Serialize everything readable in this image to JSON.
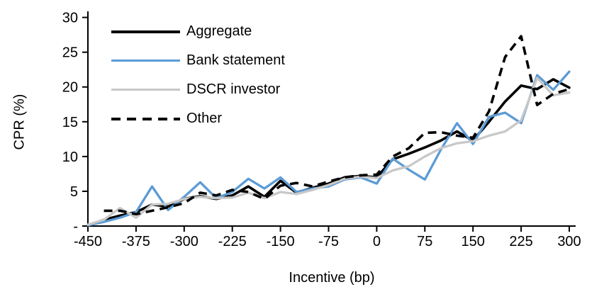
{
  "figure": {
    "y_axis_title": "CPR (%)",
    "x_axis_title": "Incentive (bp)"
  },
  "legend": {
    "items": [
      {
        "label": "Aggregate"
      },
      {
        "label": "Bank statement"
      },
      {
        "label": "DSCR investor"
      },
      {
        "label": "Other"
      }
    ]
  },
  "chart_data": {
    "type": "line",
    "title": "",
    "xlabel": "Incentive (bp)",
    "ylabel": "CPR (%)",
    "xlim": [
      -450,
      300
    ],
    "ylim": [
      0,
      30
    ],
    "grid": false,
    "legend_position": "top-left",
    "x_ticks": [
      -450,
      -375,
      -300,
      -225,
      -150,
      -75,
      0,
      75,
      150,
      225,
      300
    ],
    "y_ticks": [
      0,
      5,
      10,
      15,
      20,
      25,
      30
    ],
    "y_tick_labels": [
      "-",
      "5",
      "10",
      "15",
      "20",
      "25",
      "30"
    ],
    "x": [
      -450,
      -425,
      -400,
      -375,
      -350,
      -325,
      -300,
      -275,
      -250,
      -225,
      -200,
      -175,
      -150,
      -125,
      -100,
      -75,
      -50,
      -25,
      0,
      25,
      50,
      75,
      100,
      125,
      150,
      175,
      200,
      225,
      250,
      275,
      300
    ],
    "series": [
      {
        "name": "Aggregate",
        "color": "#000000",
        "dash": false,
        "values": [
          0.1,
          0.9,
          1.5,
          2.0,
          3.1,
          2.8,
          3.9,
          4.3,
          3.9,
          4.4,
          5.7,
          4.2,
          6.5,
          4.8,
          5.5,
          6.1,
          7.0,
          7.2,
          7.0,
          9.6,
          10.4,
          11.3,
          12.3,
          13.6,
          12.3,
          15.0,
          17.9,
          20.2,
          19.7,
          21.1,
          19.9
        ]
      },
      {
        "name": "Bank statement",
        "color": "#5B9BD5",
        "dash": false,
        "values": [
          0.1,
          0.6,
          1.2,
          2.0,
          5.7,
          2.3,
          4.2,
          6.3,
          4.0,
          4.9,
          6.8,
          5.4,
          7.0,
          4.9,
          5.4,
          5.7,
          6.7,
          7.0,
          6.1,
          9.7,
          8.1,
          6.7,
          11.0,
          14.8,
          11.8,
          15.7,
          16.3,
          14.8,
          21.7,
          19.6,
          22.2
        ]
      },
      {
        "name": "DSCR investor",
        "color": "#C8C8C8",
        "dash": false,
        "values": [
          0.2,
          0.9,
          2.6,
          1.2,
          3.1,
          3.2,
          3.9,
          4.2,
          4.0,
          4.1,
          4.8,
          4.0,
          4.9,
          4.6,
          5.2,
          5.9,
          6.8,
          7.1,
          6.9,
          8.0,
          8.6,
          10.0,
          11.2,
          11.9,
          12.2,
          13.0,
          13.6,
          15.2,
          21.3,
          18.8,
          19.2
        ]
      },
      {
        "name": "Other",
        "color": "#000000",
        "dash": true,
        "values": [
          null,
          2.2,
          2.2,
          1.7,
          2.2,
          2.7,
          3.3,
          4.8,
          4.4,
          5.2,
          4.9,
          3.9,
          5.8,
          6.2,
          5.7,
          6.4,
          7.0,
          7.3,
          7.4,
          10.0,
          11.2,
          13.4,
          13.5,
          13.0,
          12.7,
          16.5,
          24.3,
          27.3,
          17.4,
          19.0,
          19.7
        ]
      }
    ]
  }
}
